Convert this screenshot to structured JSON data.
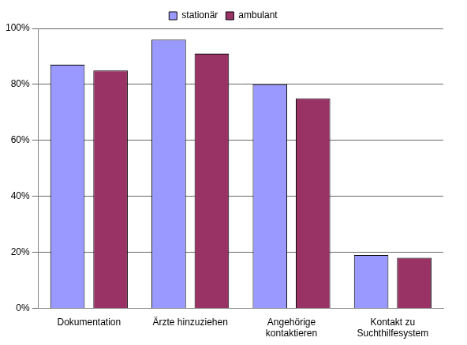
{
  "chart_data": {
    "type": "bar",
    "categories": [
      "Dokumentation",
      "Ärzte hinzuziehen",
      [
        "Angehörige",
        "kontaktieren"
      ],
      [
        "Kontakt zu",
        "Suchthilfesystem"
      ]
    ],
    "series": [
      {
        "name": "stationär",
        "color": "#9999ff",
        "values": [
          87,
          96,
          80,
          19
        ]
      },
      {
        "name": "ambulant",
        "color": "#993366",
        "values": [
          85,
          91,
          75,
          18
        ]
      }
    ],
    "ylim": [
      0,
      100
    ],
    "yticks": [
      {
        "value": 0,
        "label": "0%"
      },
      {
        "value": 20,
        "label": "20%"
      },
      {
        "value": 40,
        "label": "40%"
      },
      {
        "value": 60,
        "label": "60%"
      },
      {
        "value": 80,
        "label": "80%"
      },
      {
        "value": 100,
        "label": "100%"
      }
    ],
    "grid": true,
    "legend": "top"
  }
}
